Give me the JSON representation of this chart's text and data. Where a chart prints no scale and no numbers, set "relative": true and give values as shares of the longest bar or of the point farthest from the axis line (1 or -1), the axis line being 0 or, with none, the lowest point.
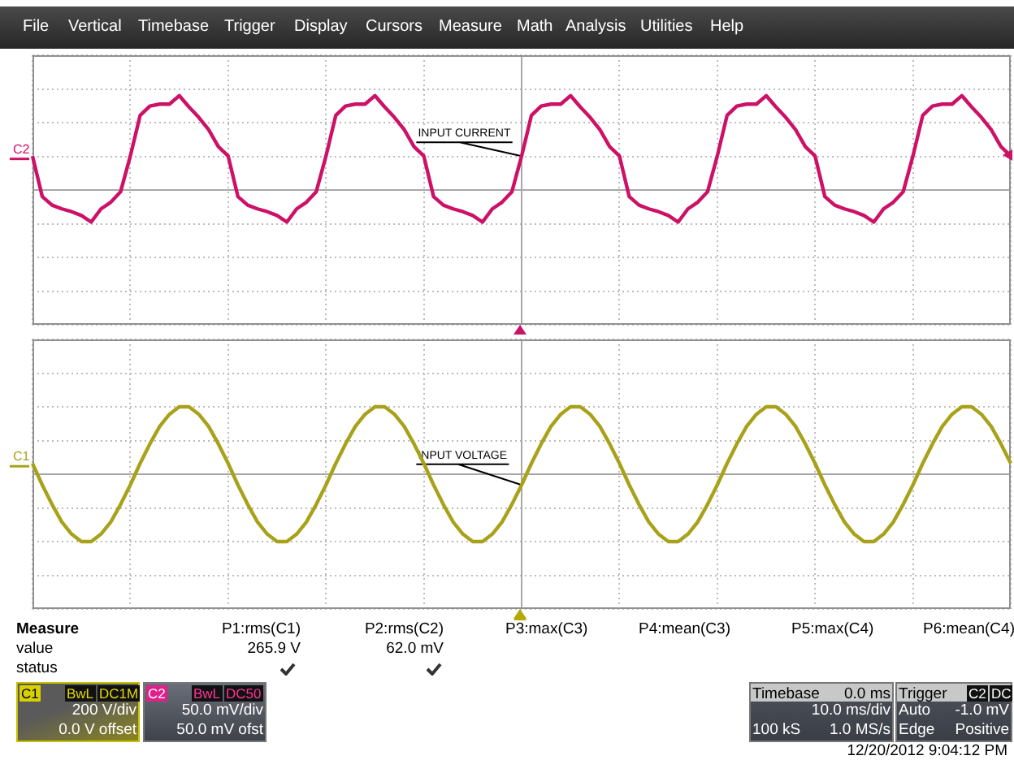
{
  "chart_data": [
    {
      "type": "other",
      "annotations": [
        "File",
        "Vertical",
        "Timebase",
        "Trigger",
        "Display",
        "Cursors",
        "Measure",
        "Math",
        "Analysis",
        "Utilities",
        "Help"
      ]
    },
    {
      "type": "line",
      "relative": true,
      "grid": true,
      "tick_labels": false,
      "annotations": [
        "INPUT CURRENT"
      ],
      "categories": [
        null,
        null,
        null,
        null,
        null,
        null,
        null,
        null,
        null,
        null,
        null,
        null,
        null,
        null,
        null,
        null,
        null,
        null,
        null,
        null,
        null,
        null,
        null,
        null,
        null,
        null,
        null,
        null,
        null,
        null,
        null,
        null,
        null,
        null,
        null,
        null,
        null,
        null,
        null,
        null,
        null,
        null,
        null,
        null,
        null,
        null,
        null,
        null,
        null,
        null,
        null,
        null,
        null,
        null,
        null,
        null,
        null,
        null,
        null,
        null,
        null,
        null,
        null,
        null,
        null,
        null,
        null,
        null,
        null,
        null,
        null,
        null,
        null,
        null,
        null,
        null,
        null,
        null,
        null,
        null,
        null,
        null,
        null,
        null,
        null,
        null,
        null,
        null,
        null,
        null,
        null,
        null,
        null,
        null,
        null,
        null,
        null,
        null,
        null,
        null,
        null
      ],
      "series": [
        {
          "name": "C2",
          "color": "#cc1166",
          "values": [
            0.36,
            -0.07,
            -0.16,
            -0.2,
            -0.23,
            -0.27,
            -0.34,
            -0.2,
            -0.13,
            -0.02,
            0.36,
            0.79,
            0.89,
            0.91,
            0.91,
            1,
            0.88,
            0.77,
            0.64,
            0.46,
            0.36,
            -0.07,
            -0.16,
            -0.2,
            -0.23,
            -0.27,
            -0.34,
            -0.2,
            -0.13,
            -0.02,
            0.36,
            0.79,
            0.89,
            0.91,
            0.91,
            1,
            0.88,
            0.77,
            0.64,
            0.46,
            0.36,
            -0.07,
            -0.16,
            -0.2,
            -0.23,
            -0.27,
            -0.34,
            -0.2,
            -0.13,
            -0.02,
            0.36,
            0.79,
            0.89,
            0.91,
            0.91,
            1,
            0.88,
            0.77,
            0.64,
            0.46,
            0.36,
            -0.07,
            -0.16,
            -0.2,
            -0.23,
            -0.27,
            -0.34,
            -0.2,
            -0.13,
            -0.02,
            0.36,
            0.79,
            0.89,
            0.91,
            0.91,
            1,
            0.88,
            0.77,
            0.64,
            0.46,
            0.36,
            -0.07,
            -0.16,
            -0.2,
            -0.23,
            -0.27,
            -0.34,
            -0.2,
            -0.13,
            -0.02,
            0.36,
            0.79,
            0.89,
            0.91,
            0.91,
            1,
            0.88,
            0.77,
            0.64,
            0.46,
            0.36
          ]
        }
      ]
    },
    {
      "type": "line",
      "relative": true,
      "grid": true,
      "tick_labels": false,
      "annotations": [
        "INPUT VOLTAGE"
      ],
      "categories": [
        null,
        null,
        null,
        null,
        null,
        null,
        null,
        null,
        null,
        null,
        null,
        null,
        null,
        null,
        null,
        null,
        null,
        null,
        null,
        null,
        null,
        null,
        null,
        null,
        null,
        null,
        null,
        null,
        null,
        null,
        null,
        null,
        null,
        null,
        null,
        null,
        null,
        null,
        null,
        null,
        null,
        null,
        null,
        null,
        null,
        null,
        null,
        null,
        null,
        null,
        null,
        null,
        null,
        null,
        null,
        null,
        null,
        null,
        null,
        null,
        null,
        null,
        null,
        null,
        null,
        null,
        null,
        null,
        null,
        null,
        null,
        null,
        null,
        null,
        null,
        null,
        null,
        null,
        null,
        null,
        null,
        null,
        null,
        null,
        null,
        null,
        null,
        null,
        null,
        null,
        null,
        null,
        null,
        null,
        null,
        null,
        null,
        null,
        null,
        null,
        null
      ],
      "series": [
        {
          "name": "C1",
          "color": "#a8a21a",
          "values": [
            0.16,
            -0.16,
            -0.45,
            -0.71,
            -0.89,
            -1,
            -1,
            -0.89,
            -0.71,
            -0.45,
            -0.16,
            0.16,
            0.45,
            0.71,
            0.89,
            1,
            1,
            0.89,
            0.71,
            0.45,
            0.16,
            -0.16,
            -0.45,
            -0.71,
            -0.89,
            -1,
            -1,
            -0.89,
            -0.71,
            -0.45,
            -0.16,
            0.16,
            0.45,
            0.71,
            0.89,
            1,
            1,
            0.89,
            0.71,
            0.45,
            0.16,
            -0.16,
            -0.45,
            -0.71,
            -0.89,
            -1,
            -1,
            -0.89,
            -0.71,
            -0.45,
            -0.16,
            0.16,
            0.45,
            0.71,
            0.89,
            1,
            1,
            0.89,
            0.71,
            0.45,
            0.16,
            -0.16,
            -0.45,
            -0.71,
            -0.89,
            -1,
            -1,
            -0.89,
            -0.71,
            -0.45,
            -0.16,
            0.16,
            0.45,
            0.71,
            0.89,
            1,
            1,
            0.89,
            0.71,
            0.45,
            0.16,
            -0.16,
            -0.45,
            -0.71,
            -0.89,
            -1,
            -1,
            -0.89,
            -0.71,
            -0.45,
            -0.16,
            0.16,
            0.45,
            0.71,
            0.89,
            1,
            1,
            0.89,
            0.71,
            0.45,
            0.16
          ]
        }
      ]
    },
    {
      "type": "other",
      "annotations": [
        "Measure",
        "value",
        "status",
        "P1:rms(C1)",
        "265.9 V",
        "P2:rms(C2)",
        "62.0 mV",
        "P3:max(C3)",
        "P4:mean(C3)",
        "P5:max(C4)",
        "P6:mean(C4)",
        "C1",
        "BwL",
        "DC1M",
        "200 V/div",
        "0.0 V offset",
        "C2",
        "BwL",
        "DC50",
        "50.0 mV/div",
        "50.0 mV ofst",
        "Timebase",
        "0.0 ms",
        "10.0 ms/div",
        "100 kS",
        "1.0 MS/s",
        "Trigger",
        "C2",
        "DC",
        "Auto",
        "-1.0 mV",
        "Edge",
        "Positive",
        "12/20/2012 9:04:12 PM"
      ]
    }
  ]
}
